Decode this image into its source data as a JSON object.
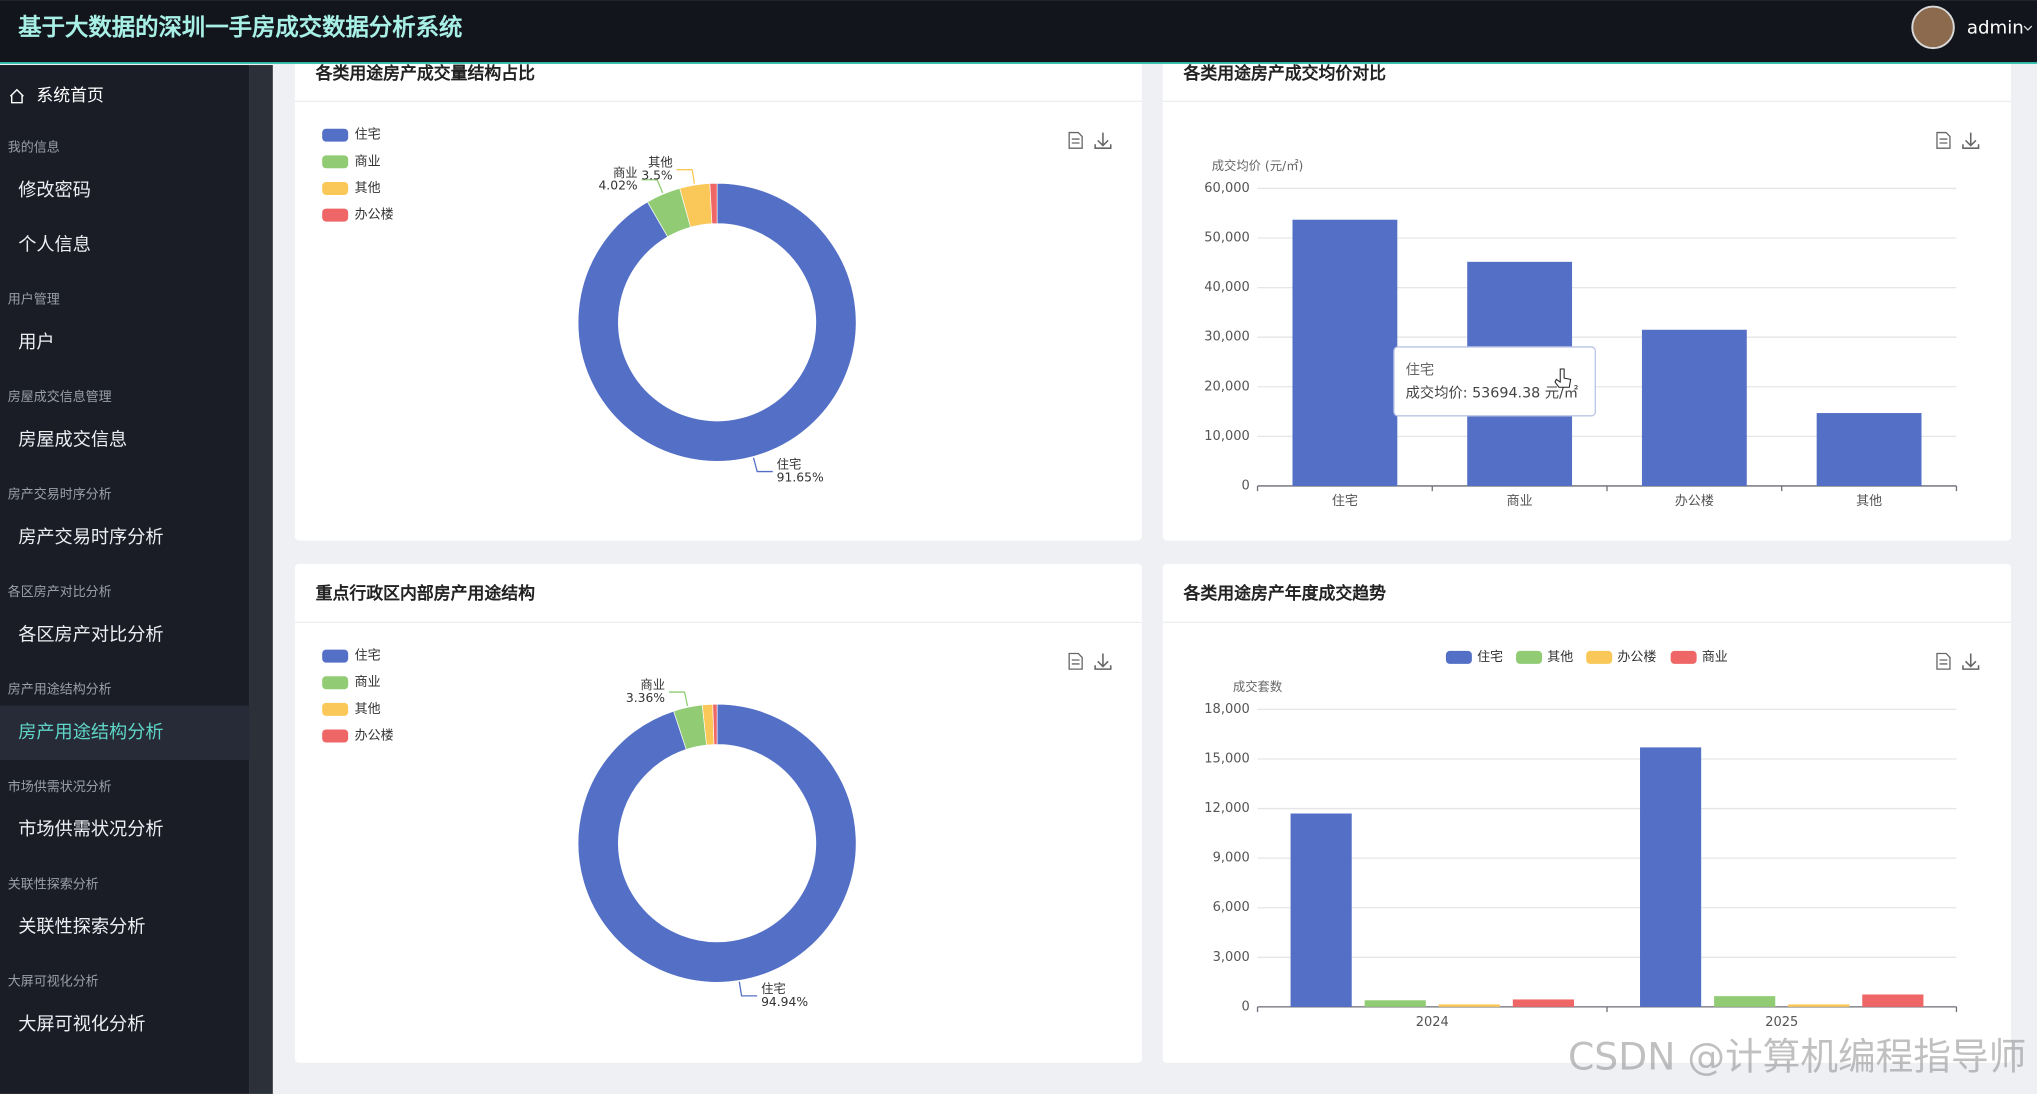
{
  "header": {
    "title": "基于大数据的深圳一手房成交数据分析系统",
    "user": "admin"
  },
  "sidebar": {
    "home": "系统首页",
    "groups": [
      {
        "title": "我的信息",
        "items": [
          "修改密码",
          "个人信息"
        ]
      },
      {
        "title": "用户管理",
        "items": [
          "用户"
        ]
      },
      {
        "title": "房屋成交信息管理",
        "items": [
          "房屋成交信息"
        ]
      },
      {
        "title": "房产交易时序分析",
        "items": [
          "房产交易时序分析"
        ]
      },
      {
        "title": "各区房产对比分析",
        "items": [
          "各区房产对比分析"
        ]
      },
      {
        "title": "房产用途结构分析",
        "items": [
          "房产用途结构分析"
        ]
      },
      {
        "title": "市场供需状况分析",
        "items": [
          "市场供需状况分析"
        ]
      },
      {
        "title": "关联性探索分析",
        "items": [
          "关联性探索分析"
        ]
      },
      {
        "title": "大屏可视化分析",
        "items": [
          "大屏可视化分析"
        ]
      }
    ]
  },
  "panels": [
    {
      "title": "各类用途房产成交量结构占比",
      "chart": {
        "type": "pie",
        "legend": "top-left",
        "categories": [
          "住宅",
          "商业",
          "其他",
          "办公楼"
        ],
        "values": [
          91.65,
          4.02,
          3.5,
          0.83
        ],
        "value_labels": [
          "91.65%",
          "4.02%",
          "3.5%",
          null
        ],
        "colors": [
          "#5470c6",
          "#91cc75",
          "#fac858",
          "#ee6666"
        ]
      }
    },
    {
      "title": "各类用途房产成交均价对比",
      "chart": {
        "type": "bar",
        "y_label": "成交均价 (元/㎡)",
        "categories": [
          "住宅",
          "商业",
          "办公楼",
          "其他"
        ],
        "values": [
          53694.38,
          45200,
          31500,
          14700
        ],
        "color": "#5470c6",
        "ylim": [
          0,
          60000
        ],
        "yticks": [
          0,
          {
            "value": 10000,
            "label": "10,000"
          },
          {
            "value": 20000,
            "label": "20,000"
          },
          {
            "value": 30000,
            "label": "30,000"
          },
          {
            "value": 40000,
            "label": "40,000"
          },
          {
            "value": 50000,
            "label": "50,000"
          },
          {
            "value": 60000,
            "label": "60,000"
          }
        ],
        "grid": true,
        "tooltip": {
          "title": "住宅",
          "label": "成交均价: 53694.38 元/㎡"
        }
      }
    },
    {
      "title": "重点行政区内部房产用途结构",
      "chart": {
        "type": "pie",
        "legend": "top-left",
        "categories": [
          "住宅",
          "商业",
          "其他",
          "办公楼"
        ],
        "values": [
          94.94,
          3.36,
          1.2,
          0.5
        ],
        "value_labels": [
          "94.94%",
          "3.36%",
          null,
          null
        ],
        "colors": [
          "#5470c6",
          "#91cc75",
          "#fac858",
          "#ee6666"
        ]
      }
    },
    {
      "title": "各类用途房产年度成交趋势",
      "chart": {
        "type": "grouped-bar",
        "legend": "top-center",
        "y_label": "成交套数",
        "categories": [
          "2024",
          "2025"
        ],
        "series": [
          {
            "name": "住宅",
            "color": "#5470c6",
            "values": [
              11700,
              15700
            ]
          },
          {
            "name": "其他",
            "color": "#91cc75",
            "values": [
              400,
              650
            ]
          },
          {
            "name": "办公楼",
            "color": "#fac858",
            "values": [
              150,
              150
            ]
          },
          {
            "name": "商业",
            "color": "#ee6666",
            "values": [
              450,
              750
            ]
          }
        ],
        "ylim": [
          0,
          18000
        ],
        "yticks": [
          0,
          {
            "value": 3000,
            "label": "3,000"
          },
          {
            "value": 6000,
            "label": "6,000"
          },
          {
            "value": 9000,
            "label": "9,000"
          },
          {
            "value": 12000,
            "label": "12,000"
          },
          {
            "value": 15000,
            "label": "15,000"
          },
          {
            "value": 18000,
            "label": "18,000"
          }
        ],
        "grid": true
      }
    }
  ],
  "watermark": "CSDN @计算机编程指导师"
}
